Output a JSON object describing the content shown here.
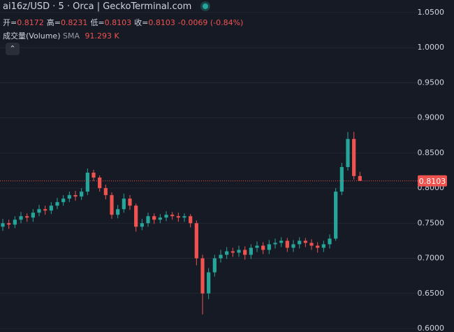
{
  "chart_data": {
    "type": "candlestick",
    "legend": {
      "symbol": "ai16z/USD · 5 · Orca | GeckoTerminal.com",
      "ohlc": [
        {
          "label": "开=",
          "value": "0.8172"
        },
        {
          "label": "高=",
          "value": "0.8231"
        },
        {
          "label": "低=",
          "value": "0.8103"
        },
        {
          "label": "收=",
          "value": "0.8103"
        }
      ],
      "change": "-0.0069 (-0.84%)",
      "volume": {
        "label": "成交量(Volume)",
        "sma": "SMA",
        "value": "91.293 K"
      }
    },
    "up_color": "#26a69a",
    "down_color": "#ef5350",
    "grid": true,
    "ylim": [
      0.6,
      1.05
    ],
    "yticks": [
      {
        "value": 0.6,
        "label": "0.6000"
      },
      {
        "value": 0.65,
        "label": "0.6500"
      },
      {
        "value": 0.7,
        "label": "0.7000"
      },
      {
        "value": 0.75,
        "label": "0.7500"
      },
      {
        "value": 0.8,
        "label": "0.8000"
      },
      {
        "value": 0.85,
        "label": "0.8500"
      },
      {
        "value": 0.9,
        "label": "0.9000"
      },
      {
        "value": 0.95,
        "label": "0.9500"
      },
      {
        "value": 1.0,
        "label": "1.0000"
      },
      {
        "value": 1.05,
        "label": "1.0500"
      }
    ],
    "last_price": {
      "value": 0.8103,
      "label": "0.8103"
    },
    "open": [
      0.745,
      0.75,
      0.748,
      0.755,
      0.76,
      0.758,
      0.765,
      0.77,
      0.768,
      0.775,
      0.78,
      0.785,
      0.79,
      0.788,
      0.795,
      0.822,
      0.815,
      0.8,
      0.79,
      0.762,
      0.77,
      0.785,
      0.775,
      0.745,
      0.75,
      0.76,
      0.755,
      0.758,
      0.762,
      0.76,
      0.758,
      0.76,
      0.75,
      0.7,
      0.65,
      0.68,
      0.7,
      0.705,
      0.71,
      0.708,
      0.712,
      0.705,
      0.715,
      0.718,
      0.712,
      0.72,
      0.722,
      0.725,
      0.715,
      0.72,
      0.725,
      0.722,
      0.718,
      0.715,
      0.72,
      0.728,
      0.795,
      0.83,
      0.87,
      0.8172
    ],
    "high": [
      0.756,
      0.755,
      0.76,
      0.766,
      0.764,
      0.77,
      0.776,
      0.775,
      0.78,
      0.786,
      0.79,
      0.795,
      0.796,
      0.8,
      0.828,
      0.826,
      0.818,
      0.805,
      0.794,
      0.776,
      0.792,
      0.79,
      0.778,
      0.756,
      0.765,
      0.764,
      0.763,
      0.767,
      0.766,
      0.765,
      0.764,
      0.763,
      0.754,
      0.705,
      0.686,
      0.705,
      0.712,
      0.716,
      0.715,
      0.718,
      0.717,
      0.72,
      0.724,
      0.723,
      0.726,
      0.728,
      0.73,
      0.729,
      0.726,
      0.73,
      0.729,
      0.727,
      0.723,
      0.725,
      0.734,
      0.8,
      0.836,
      0.88,
      0.88,
      0.8231
    ],
    "low": [
      0.739,
      0.742,
      0.743,
      0.75,
      0.752,
      0.752,
      0.76,
      0.762,
      0.763,
      0.77,
      0.775,
      0.78,
      0.782,
      0.783,
      0.79,
      0.81,
      0.795,
      0.784,
      0.756,
      0.757,
      0.765,
      0.769,
      0.738,
      0.74,
      0.745,
      0.749,
      0.75,
      0.753,
      0.755,
      0.752,
      0.752,
      0.744,
      0.69,
      0.62,
      0.642,
      0.674,
      0.694,
      0.699,
      0.702,
      0.702,
      0.698,
      0.699,
      0.709,
      0.706,
      0.706,
      0.714,
      0.716,
      0.709,
      0.709,
      0.714,
      0.716,
      0.712,
      0.708,
      0.709,
      0.714,
      0.725,
      0.79,
      0.825,
      0.812,
      0.8103
    ],
    "close": [
      0.75,
      0.748,
      0.755,
      0.76,
      0.758,
      0.765,
      0.77,
      0.768,
      0.775,
      0.78,
      0.785,
      0.79,
      0.788,
      0.795,
      0.822,
      0.815,
      0.8,
      0.79,
      0.762,
      0.77,
      0.785,
      0.775,
      0.745,
      0.75,
      0.76,
      0.755,
      0.758,
      0.762,
      0.76,
      0.758,
      0.76,
      0.75,
      0.7,
      0.65,
      0.68,
      0.7,
      0.705,
      0.71,
      0.708,
      0.712,
      0.705,
      0.715,
      0.718,
      0.712,
      0.72,
      0.722,
      0.725,
      0.715,
      0.72,
      0.725,
      0.722,
      0.718,
      0.715,
      0.72,
      0.728,
      0.795,
      0.83,
      0.87,
      0.8172,
      0.8103
    ]
  }
}
